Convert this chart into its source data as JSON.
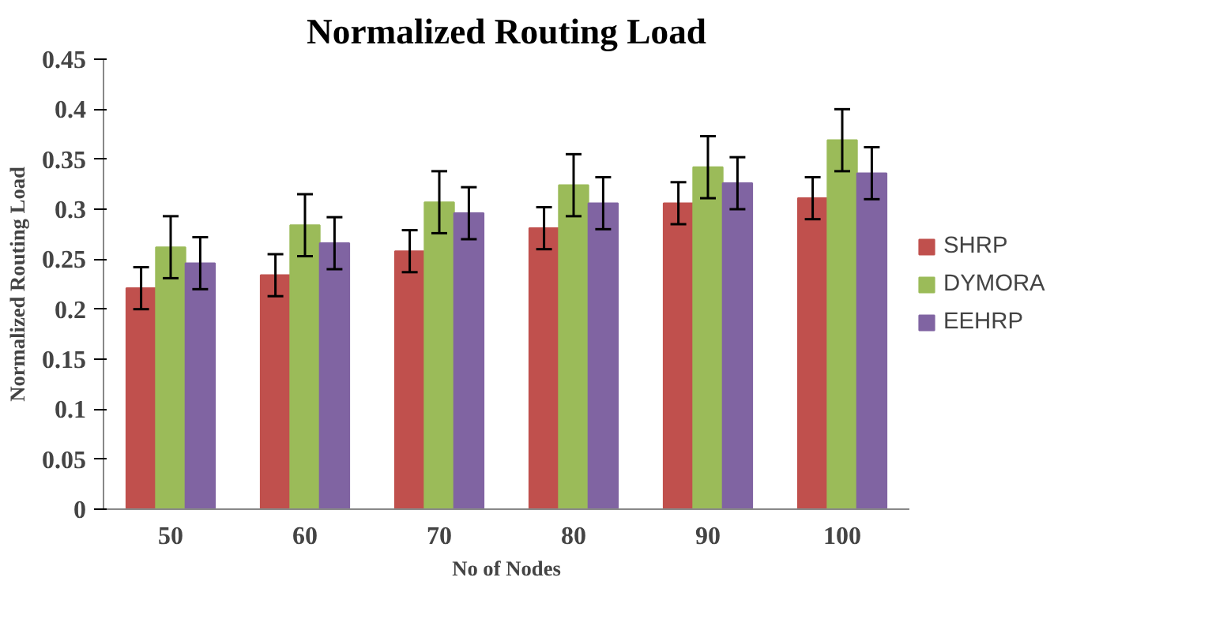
{
  "chart_data": {
    "type": "bar",
    "title": "Normalized Routing Load",
    "xlabel": "No of Nodes",
    "ylabel": "Normalized Routing Load",
    "categories": [
      "50",
      "60",
      "70",
      "80",
      "90",
      "100"
    ],
    "series": [
      {
        "name": "SHRP",
        "color": "#c0504d",
        "values": [
          0.221,
          0.234,
          0.258,
          0.281,
          0.306,
          0.311
        ],
        "errors": [
          0.021,
          0.021,
          0.021,
          0.021,
          0.021,
          0.021
        ]
      },
      {
        "name": "DYMORA",
        "color": "#9bbb59",
        "values": [
          0.262,
          0.284,
          0.307,
          0.324,
          0.342,
          0.369
        ],
        "errors": [
          0.031,
          0.031,
          0.031,
          0.031,
          0.031,
          0.031
        ]
      },
      {
        "name": "EEHRP",
        "color": "#8064a2",
        "values": [
          0.246,
          0.266,
          0.296,
          0.306,
          0.326,
          0.336
        ],
        "errors": [
          0.026,
          0.026,
          0.026,
          0.026,
          0.026,
          0.026
        ]
      }
    ],
    "ylim": [
      0,
      0.45
    ],
    "yticks": [
      0,
      0.05,
      0.1,
      0.15,
      0.2,
      0.25,
      0.3,
      0.35,
      0.4,
      0.45
    ],
    "grid": false,
    "legend": "right"
  }
}
